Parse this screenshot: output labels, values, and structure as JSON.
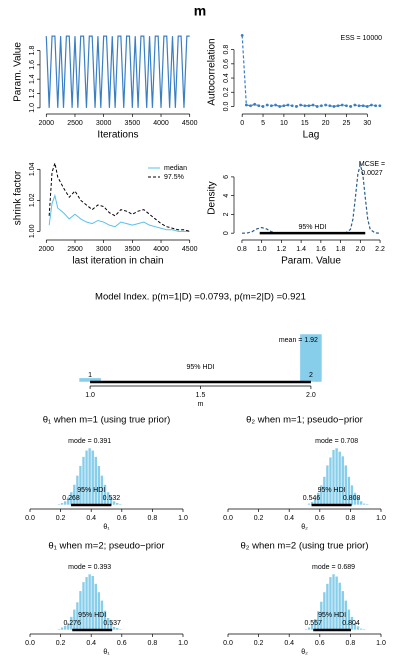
{
  "title": "m",
  "chart_data": [
    {
      "type": "line",
      "xlabel": "Iterations",
      "ylabel": "Param. Value",
      "color": "#3a7fc4",
      "x": [
        2000,
        2050,
        2100,
        2150,
        2200,
        2250,
        2300,
        2350,
        2400,
        2450,
        2500,
        2550,
        2600,
        2650,
        2700,
        2750,
        2800,
        2850,
        2900,
        2950,
        3000,
        3050,
        3100,
        3150,
        3200,
        3250,
        3300,
        3350,
        3400,
        3450,
        3500,
        3550,
        3600,
        3650,
        3700,
        3750,
        3800,
        3850,
        3900,
        3950,
        4000,
        4050,
        4100,
        4150,
        4200,
        4250,
        4300,
        4350,
        4400,
        4450,
        4500
      ],
      "values": [
        2,
        1,
        2,
        2,
        1,
        2,
        1,
        2,
        2,
        1,
        2,
        1,
        2,
        2,
        1,
        2,
        2,
        1,
        2,
        1,
        2,
        2,
        1,
        2,
        1,
        2,
        2,
        1,
        2,
        2,
        1,
        2,
        1,
        2,
        2,
        1,
        2,
        1,
        2,
        2,
        1,
        2,
        2,
        1,
        2,
        1,
        2,
        2,
        1,
        2,
        2
      ],
      "xlim": [
        1960,
        4540
      ],
      "xticks": [
        2000,
        2500,
        3000,
        3500,
        4000,
        4500
      ],
      "ylim": [
        0.97,
        2.03
      ],
      "yticks": [
        {
          "value": 1,
          "label": "1.0"
        },
        1.2,
        1.4,
        1.6,
        1.8
      ]
    },
    {
      "type": "line",
      "xlabel": "Lag",
      "ylabel": "Autocorrelation",
      "color": "#3a7fc4",
      "linestyle": "dashed",
      "markers": true,
      "annotations": [
        "ESS = 10000"
      ],
      "x": [
        0,
        1,
        2,
        3,
        4,
        5,
        6,
        7,
        8,
        9,
        10,
        11,
        12,
        13,
        14,
        15,
        16,
        17,
        18,
        19,
        20,
        21,
        22,
        23,
        24,
        25,
        26,
        27,
        28,
        29,
        30,
        31,
        32,
        33
      ],
      "values": [
        1,
        0.02,
        0.01,
        0.03,
        0.01,
        0,
        0.02,
        0.01,
        0.02,
        0,
        0.01,
        0.02,
        0.01,
        0,
        0.02,
        0.01,
        0.01,
        0.02,
        0,
        0.01,
        0.02,
        0.01,
        0,
        0.01,
        0.02,
        0.01,
        0,
        0.02,
        0.01,
        0.01,
        0,
        0.02,
        0.01,
        0.01
      ],
      "xlim": [
        -1,
        34
      ],
      "xticks": [
        0,
        5,
        10,
        15,
        20,
        25,
        30
      ],
      "ylim": [
        -0.05,
        1.02
      ],
      "yticks": [
        {
          "value": 0,
          "label": "0.0"
        },
        0.2,
        0.4,
        0.6,
        0.8
      ]
    },
    {
      "type": "line",
      "xlabel": "last iteration in chain",
      "ylabel": "shrink factor",
      "legend": "upper right",
      "x": [
        2050,
        2100,
        2150,
        2200,
        2300,
        2400,
        2500,
        2600,
        2700,
        2800,
        2900,
        3000,
        3100,
        3200,
        3300,
        3400,
        3500,
        3600,
        3700,
        3800,
        3900,
        4000,
        4100,
        4200,
        4300,
        4400,
        4500
      ],
      "series": [
        {
          "name": "median",
          "color": "#5bc0eb",
          "linestyle": "solid",
          "values": [
            1.004,
            1.018,
            1.023,
            1.015,
            1.012,
            1.008,
            1.011,
            1.008,
            1.006,
            1.005,
            1.007,
            1.006,
            1.004,
            1.003,
            1.006,
            1.005,
            1.004,
            1.005,
            1.006,
            1.004,
            1.003,
            1.002,
            1.001,
            1.001,
            1.0,
            1.0,
            1.0
          ]
        },
        {
          "name": "97.5%",
          "color": "#000000",
          "linestyle": "dashed",
          "values": [
            1.01,
            1.038,
            1.044,
            1.035,
            1.028,
            1.022,
            1.026,
            1.02,
            1.017,
            1.014,
            1.017,
            1.016,
            1.012,
            1.01,
            1.014,
            1.013,
            1.011,
            1.013,
            1.014,
            1.011,
            1.008,
            1.005,
            1.003,
            1.002,
            1.001,
            1.001,
            1.0
          ]
        }
      ],
      "xlim": [
        1960,
        4540
      ],
      "xticks": [
        2000,
        2500,
        3000,
        3500,
        4000,
        4500
      ],
      "ylim": [
        0.997,
        1.046
      ],
      "yticks": [
        {
          "value": 1,
          "label": "1.00"
        },
        1.02,
        1.04
      ]
    },
    {
      "type": "line",
      "xlabel": "Param. Value",
      "ylabel": "Density",
      "color": "#2b5d8a",
      "linestyle": "dashed",
      "annotations": [
        "MCSE =",
        "0.0027"
      ],
      "hdi": [
        0.98,
        2.05
      ],
      "hdi_label": "95% HDI",
      "x": [
        0.8,
        0.85,
        0.9,
        0.95,
        1.0,
        1.05,
        1.1,
        1.15,
        1.2,
        1.4,
        1.6,
        1.8,
        1.85,
        1.9,
        1.925,
        1.95,
        1.975,
        2.0,
        2.025,
        2.05,
        2.075,
        2.1,
        2.15,
        2.2
      ],
      "values": [
        0,
        0.01,
        0.15,
        0.45,
        0.6,
        0.45,
        0.15,
        0.02,
        0,
        0,
        0,
        0,
        0.02,
        0.4,
        1.5,
        3.8,
        6.3,
        7.3,
        6.3,
        3.8,
        1.5,
        0.4,
        0.02,
        0
      ],
      "xlim": [
        0.76,
        2.24
      ],
      "xticks": [
        0.8,
        {
          "value": 1,
          "label": "1.0"
        },
        1.2,
        1.4,
        1.6,
        1.8,
        {
          "value": 2,
          "label": "2.0"
        },
        2.2
      ],
      "ylim": [
        -0.3,
        7.8
      ],
      "yticks": [
        0,
        2,
        4,
        6
      ]
    },
    {
      "type": "bar",
      "title": "Model Index. p(m=1|D) =0.0793, p(m=2|D) =0.921",
      "xlabel": "m",
      "color": "#87ceeb",
      "x": [
        1,
        2
      ],
      "values": [
        0.0793,
        0.921
      ],
      "bar_width": 0.1,
      "annotation": "mean = 1.92",
      "hdi": [
        1,
        2
      ],
      "hdi_label": "95% HDI",
      "xlim": [
        0.9,
        2.1
      ],
      "xticks": [
        {
          "value": 1,
          "label": "1.0"
        },
        1.5,
        {
          "value": 2,
          "label": "2.0"
        }
      ]
    },
    {
      "type": "histogram",
      "title": "θ₁ when m=1 (using true prior)",
      "xlabel": "θ₁",
      "color": "#87ceeb",
      "annotation": "mode = 0.391",
      "hdi": [
        0.268,
        0.532
      ],
      "hdi_label": "95% HDI",
      "bins": [
        0.18,
        0.2,
        0.22,
        0.24,
        0.26,
        0.28,
        0.3,
        0.32,
        0.34,
        0.36,
        0.38,
        0.4,
        0.42,
        0.44,
        0.46,
        0.48,
        0.5,
        0.52,
        0.54,
        0.56,
        0.58,
        0.6,
        0.62,
        0.64
      ],
      "values": [
        2,
        4,
        7,
        14,
        23,
        36,
        52,
        69,
        85,
        96,
        100,
        96,
        85,
        69,
        52,
        36,
        23,
        14,
        7,
        4,
        2,
        1,
        0
      ],
      "xlim": [
        0,
        1
      ],
      "xticks": [
        {
          "value": 0,
          "label": "0.0"
        },
        0.2,
        0.4,
        0.6,
        0.8,
        {
          "value": 1,
          "label": "1.0"
        }
      ]
    },
    {
      "type": "histogram",
      "title": "θ₂ when m=1; pseudo−prior",
      "xlabel": "θ₂",
      "color": "#87ceeb",
      "annotation": "mode = 0.708",
      "hdi": [
        0.546,
        0.808
      ],
      "hdi_label": "95% HDI",
      "bins": [
        0.5,
        0.52,
        0.54,
        0.56,
        0.58,
        0.6,
        0.62,
        0.64,
        0.66,
        0.68,
        0.7,
        0.72,
        0.74,
        0.76,
        0.78,
        0.8,
        0.82,
        0.84,
        0.86,
        0.88,
        0.9,
        0.92,
        0.94,
        0.96
      ],
      "values": [
        1,
        3,
        6,
        12,
        22,
        35,
        50,
        70,
        84,
        97,
        100,
        94,
        86,
        70,
        50,
        35,
        22,
        13,
        7,
        3,
        2,
        1,
        0
      ],
      "xlim": [
        0,
        1
      ],
      "xticks": [
        {
          "value": 0,
          "label": "0.0"
        },
        0.2,
        0.4,
        0.6,
        0.8,
        {
          "value": 1,
          "label": "1.0"
        }
      ]
    },
    {
      "type": "histogram",
      "title": "θ₁ when m=2; pseudo−prior",
      "xlabel": "θ₁",
      "color": "#87ceeb",
      "annotation": "mode = 0.393",
      "hdi": [
        0.276,
        0.537
      ],
      "hdi_label": "95% HDI",
      "bins": [
        0.18,
        0.2,
        0.22,
        0.24,
        0.26,
        0.28,
        0.3,
        0.32,
        0.34,
        0.36,
        0.38,
        0.4,
        0.42,
        0.44,
        0.46,
        0.48,
        0.5,
        0.52,
        0.54,
        0.56,
        0.58,
        0.6,
        0.62,
        0.64
      ],
      "values": [
        2,
        5,
        8,
        13,
        24,
        37,
        50,
        70,
        86,
        95,
        100,
        97,
        83,
        68,
        53,
        35,
        22,
        15,
        6,
        4,
        2,
        1,
        0
      ],
      "xlim": [
        0,
        1
      ],
      "xticks": [
        {
          "value": 0,
          "label": "0.0"
        },
        0.2,
        0.4,
        0.6,
        0.8,
        {
          "value": 1,
          "label": "1.0"
        }
      ]
    },
    {
      "type": "histogram",
      "title": "θ₂ when m=2 (using true prior)",
      "xlabel": "θ₂",
      "color": "#87ceeb",
      "annotation": "mode = 0.689",
      "hdi": [
        0.557,
        0.804
      ],
      "hdi_label": "95% HDI",
      "bins": [
        0.48,
        0.5,
        0.52,
        0.54,
        0.56,
        0.58,
        0.6,
        0.62,
        0.64,
        0.66,
        0.68,
        0.7,
        0.72,
        0.74,
        0.76,
        0.78,
        0.8,
        0.82,
        0.84,
        0.86,
        0.88,
        0.9,
        0.92,
        0.94
      ],
      "values": [
        1,
        2,
        5,
        11,
        20,
        34,
        51,
        68,
        83,
        95,
        100,
        96,
        85,
        70,
        53,
        37,
        24,
        13,
        7,
        3,
        2,
        1,
        0
      ],
      "xlim": [
        0,
        1
      ],
      "xticks": [
        {
          "value": 0,
          "label": "0.0"
        },
        0.2,
        0.4,
        0.6,
        0.8,
        {
          "value": 1,
          "label": "1.0"
        }
      ]
    }
  ]
}
